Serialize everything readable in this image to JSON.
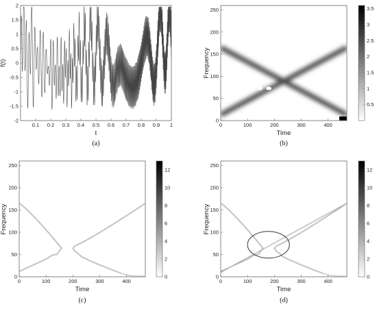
{
  "chart_data": [
    {
      "id": "a",
      "type": "line",
      "caption": "(a)",
      "xlabel": "t",
      "ylabel": "f(t)",
      "xlim": [
        0,
        1
      ],
      "ylim": [
        -2,
        2
      ],
      "xticks": [
        "0.1",
        "0.2",
        "0.3",
        "0.4",
        "0.5",
        "0.6",
        "0.7",
        "0.8",
        "0.9",
        "1"
      ],
      "yticks": [
        "-2",
        "-1.5",
        "-1",
        "-0.5",
        "0",
        "0.5",
        "1",
        "1.5",
        "2"
      ],
      "series": [
        {
          "description_signal": "chirp-like oscillating signal",
          "color": "#444444"
        }
      ]
    },
    {
      "id": "b",
      "type": "heatmap",
      "caption": "(b)",
      "xlabel": "Time",
      "ylabel": "Frequency",
      "xlim": [
        0,
        470
      ],
      "ylim": [
        0,
        260
      ],
      "xticks": [
        "0",
        "100",
        "200",
        "300",
        "400"
      ],
      "yticks": [
        "0",
        "50",
        "100",
        "150",
        "200",
        "250"
      ],
      "colorbar_ticks": [
        "0.5",
        "1",
        "1.5",
        "2",
        "2.5",
        "3",
        "3.5"
      ],
      "colorbar_range": [
        0,
        3.6
      ],
      "ridges": [
        {
          "x": [
            0,
            470
          ],
          "y": [
            165,
            13
          ]
        },
        {
          "x": [
            0,
            470
          ],
          "y": [
            13,
            165
          ]
        }
      ]
    },
    {
      "id": "c",
      "type": "heatmap",
      "caption": "(c)",
      "xlabel": "Time",
      "ylabel": "Frequency",
      "xlim": [
        0,
        470
      ],
      "ylim": [
        0,
        260
      ],
      "xticks": [
        "0",
        "100",
        "200",
        "300",
        "400"
      ],
      "yticks": [
        "0",
        "50",
        "100",
        "150",
        "200",
        "250"
      ],
      "colorbar_ticks": [
        "0",
        "2",
        "4",
        "6",
        "8",
        "10",
        "12"
      ],
      "colorbar_range": [
        0,
        13
      ]
    },
    {
      "id": "d",
      "type": "heatmap",
      "caption": "(d)",
      "xlabel": "Time",
      "ylabel": "Frequency",
      "xlim": [
        0,
        470
      ],
      "ylim": [
        0,
        260
      ],
      "xticks": [
        "0",
        "100",
        "200",
        "300",
        "400"
      ],
      "yticks": [
        "0",
        "50",
        "100",
        "150",
        "200",
        "250"
      ],
      "colorbar_ticks": [
        "0",
        "2",
        "4",
        "6",
        "8",
        "10",
        "12"
      ],
      "colorbar_range": [
        0,
        13
      ],
      "annotation": {
        "shape": "ellipse",
        "center": [
          178,
          72
        ],
        "rx": 78,
        "ry": 30
      }
    }
  ]
}
